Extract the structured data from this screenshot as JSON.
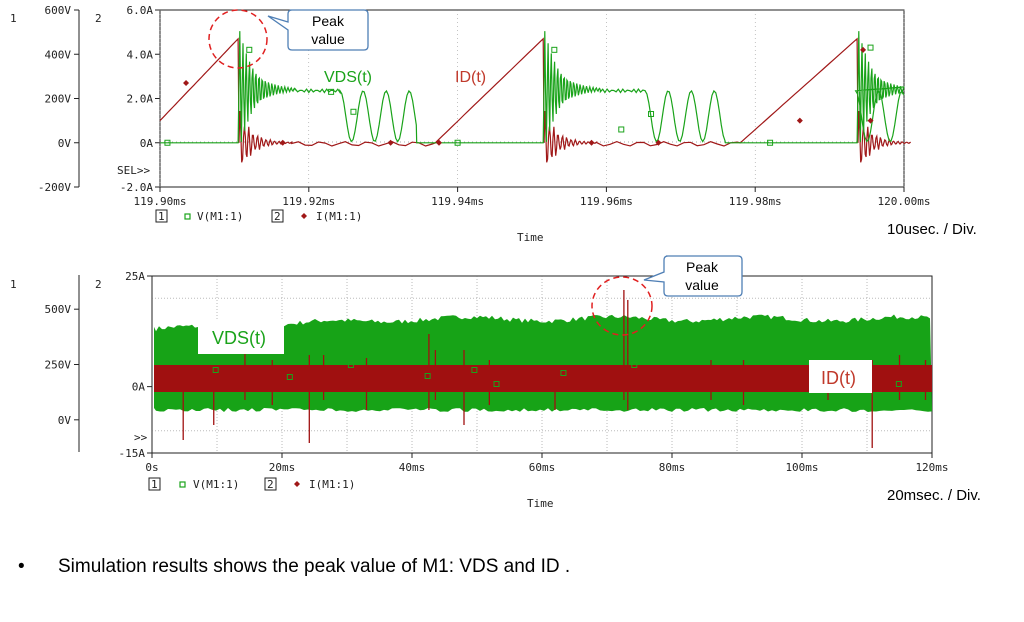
{
  "chart_data": [
    {
      "type": "line",
      "series": [
        {
          "name": "V(M1:1)",
          "label": "VDS(t)",
          "axis": 1,
          "color": "#1aa31a",
          "marker": "square",
          "description_points": {
            "x": [
              119.9,
              119.91,
              119.912,
              119.92,
              119.93,
              119.934,
              119.94,
              119.952,
              119.96,
              119.97,
              119.975,
              119.98,
              119.99,
              119.995,
              120.0
            ],
            "y": [
              0,
              0,
              500,
              230,
              0,
              0,
              0,
              500,
              230,
              0,
              0,
              0,
              0,
              500,
              230
            ]
          }
        },
        {
          "name": "I(M1:1)",
          "label": "ID(t)",
          "axis": 2,
          "color": "#a01818",
          "marker": "diamond",
          "description_points": {
            "x": [
              119.9,
              119.91,
              119.911,
              119.912,
              119.92,
              119.937,
              119.951,
              119.952,
              119.97,
              119.978,
              119.993,
              119.994,
              120.0
            ],
            "y": [
              1.0,
              4.7,
              0,
              0,
              0,
              0,
              4.7,
              0,
              0,
              0,
              4.7,
              0,
              0
            ]
          }
        }
      ],
      "x_range": [
        119.9,
        120.0
      ],
      "x_unit": "ms",
      "y1_ticks": [
        "600V",
        "400V",
        "200V",
        "0V",
        "-200V"
      ],
      "y1_range": [
        -200,
        600
      ],
      "y2_ticks": [
        "6.0A",
        "4.0A",
        "2.0A",
        "0A",
        "-2.0A"
      ],
      "y2_range": [
        -2,
        6
      ],
      "x_ticks": [
        "119.90ms",
        "119.92ms",
        "119.94ms",
        "119.96ms",
        "119.98ms",
        "120.00ms"
      ],
      "xlabel": "Time",
      "axis_ids": [
        "1",
        "2"
      ],
      "sel_marker": "SEL>>",
      "legend": [
        {
          "id": "1",
          "text": "V(M1:1)"
        },
        {
          "id": "2",
          "text": "I(M1:1)"
        }
      ],
      "annotations": {
        "callout": "Peak value",
        "vds_label": "VDS(t)",
        "id_label": "ID(t)",
        "division": "10usec. / Div."
      }
    },
    {
      "type": "area",
      "series": [
        {
          "name": "V(M1:1)",
          "label": "VDS(t)",
          "axis": 1,
          "color": "#1aa31a",
          "band": [
            -5,
            450
          ]
        },
        {
          "name": "I(M1:1)",
          "label": "ID(t)",
          "axis": 2,
          "color": "#a01818",
          "band": [
            -0.5,
            5
          ]
        }
      ],
      "x_range": [
        0,
        120
      ],
      "x_unit": "ms",
      "y1_ticks": [
        "500V",
        "250V",
        "0V"
      ],
      "y1_range": [
        -150,
        650
      ],
      "y2_ticks": [
        "25A",
        "0A",
        "-15A"
      ],
      "y2_range": [
        -15,
        25
      ],
      "x_ticks": [
        "0s",
        "20ms",
        "40ms",
        "60ms",
        "80ms",
        "100ms",
        "120ms"
      ],
      "xlabel": "Time",
      "axis_ids": [
        "1",
        "2"
      ],
      "sel_marker": ">>",
      "legend": [
        {
          "id": "1",
          "text": "V(M1:1)"
        },
        {
          "id": "2",
          "text": "I(M1:1)"
        }
      ],
      "annotations": {
        "callout": "Peak value",
        "vds_label": "VDS(t)",
        "id_label": "ID(t)",
        "division": "20msec. / Div."
      }
    }
  ],
  "footnote": {
    "bullet": "•",
    "text": "Simulation results shows the peak value of M1: VDS and ID ."
  }
}
